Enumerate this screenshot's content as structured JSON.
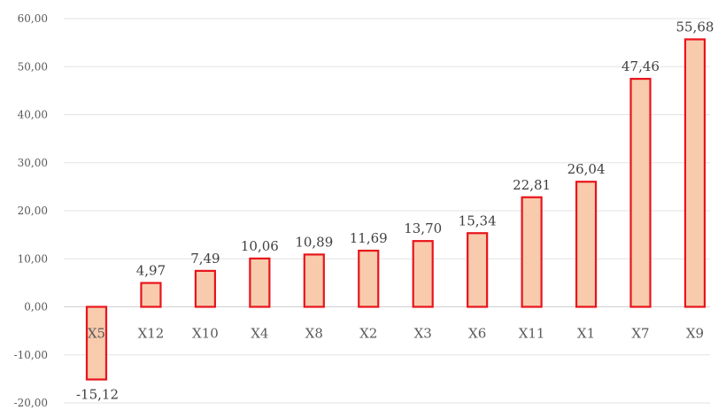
{
  "chart_data": {
    "type": "bar",
    "categories": [
      "X5",
      "X12",
      "X10",
      "X4",
      "X8",
      "X2",
      "X3",
      "X6",
      "X11",
      "X1",
      "X7",
      "X9"
    ],
    "values": [
      -15.12,
      4.97,
      7.49,
      10.06,
      10.89,
      11.69,
      13.7,
      15.34,
      22.81,
      26.04,
      47.46,
      55.68
    ],
    "data_labels": [
      "-15,12",
      "4,97",
      "7,49",
      "10,06",
      "10,89",
      "11,69",
      "13,70",
      "15,34",
      "22,81",
      "26,04",
      "47,46",
      "55,68"
    ],
    "y_ticks": [
      60,
      50,
      40,
      30,
      20,
      10,
      0,
      -10,
      -20
    ],
    "y_tick_labels": [
      "60,00",
      "50,00",
      "40,00",
      "30,00",
      "20,00",
      "10,00",
      "0,00",
      "-10,00",
      "-20,00"
    ],
    "ylim": [
      -20,
      60
    ],
    "grid": true,
    "title": "",
    "xlabel": "",
    "ylabel": "",
    "colors": {
      "bar_fill": "#f8cbad",
      "bar_stroke": "#e8141b",
      "grid": "#e3e3e3",
      "text": "#595959"
    }
  }
}
